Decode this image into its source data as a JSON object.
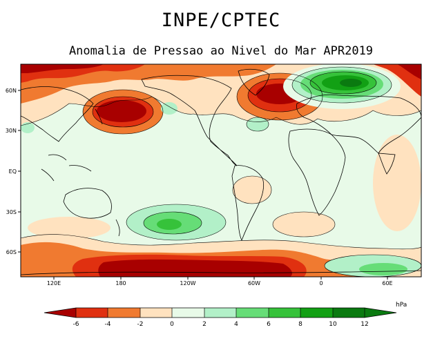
{
  "header": {
    "title": "INPE/CPTEC",
    "subtitle": "Anomalia de Pressao ao Nivel do Mar APR2019"
  },
  "axes": {
    "lat_labels": [
      "60N",
      "30N",
      "EQ",
      "30S",
      "60S"
    ],
    "lon_labels": [
      "120E",
      "180",
      "120W",
      "60W",
      "0",
      "60E"
    ]
  },
  "colorbar": {
    "unit": "hPa",
    "ticks": [
      "-6",
      "-4",
      "-2",
      "0",
      "2",
      "4",
      "6",
      "8",
      "10",
      "12"
    ],
    "colors": [
      "#a80000",
      "#e03010",
      "#f07a30",
      "#ffe2bf",
      "#e8fae8",
      "#b2f0c8",
      "#66dd77",
      "#36c23a",
      "#12a014",
      "#0a7a10"
    ]
  }
}
